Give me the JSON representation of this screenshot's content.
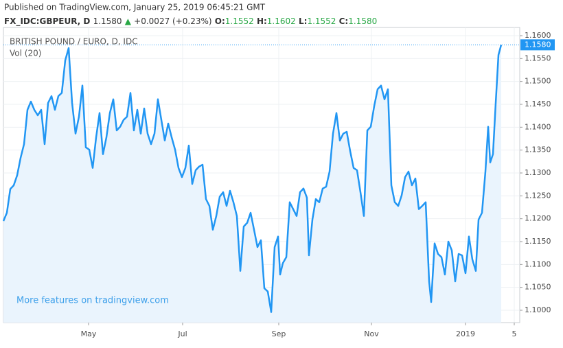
{
  "chart_data": {
    "type": "line",
    "header": {
      "published": "Published on TradingView.com, January 25, 2019 06:45:21 GMT",
      "symbol": "FX_IDC:GBPEUR, D",
      "last": "1.1580",
      "arrow": "▲",
      "change": "+0.0027 (+0.23%)",
      "o_label": "O:",
      "o": "1.1552",
      "h_label": "H:",
      "h": "1.1602",
      "l_label": "L:",
      "l": "1.1552",
      "c_label": "C:",
      "c": "1.1580"
    },
    "title": "BRITISH POUND / EURO, D, IDC",
    "indicator": "Vol (20)",
    "watermark": "More features on tradingview.com",
    "last_price_label": "1.1580",
    "series": [
      {
        "name": "GBPEUR",
        "color": "#2196f3",
        "x": [
          0,
          1,
          2,
          3,
          4,
          5,
          6,
          7,
          8,
          9,
          10,
          11,
          12,
          13,
          14,
          15,
          16,
          17,
          18,
          19,
          20,
          21,
          22,
          23,
          24,
          25,
          26,
          27,
          28,
          29,
          30,
          31,
          32,
          33,
          34,
          35,
          36,
          37,
          38,
          39,
          40,
          41,
          42,
          43,
          44,
          45,
          46,
          47,
          48,
          49,
          50,
          51,
          52,
          53,
          54,
          55,
          56,
          57,
          58,
          59,
          60,
          61,
          62,
          63,
          64,
          65,
          66,
          67,
          68,
          69,
          70,
          71,
          72,
          73,
          74,
          75,
          76,
          77,
          78,
          79,
          80,
          80.6,
          81.4,
          82.4,
          83.4,
          84.4,
          85.4,
          86.4,
          87.4,
          88.4,
          89,
          90,
          91,
          92,
          93,
          94,
          95,
          96,
          97,
          98,
          99,
          100,
          101,
          102,
          103,
          104,
          105,
          106,
          107,
          108,
          109,
          110,
          111,
          112,
          113,
          114,
          115,
          116,
          117,
          118,
          119,
          120,
          121,
          122,
          123,
          124,
          124.6,
          125.6,
          126.6,
          127.6,
          128.6,
          129.6,
          130.6,
          131.6,
          132.6,
          133.6,
          134.6,
          135.6,
          136.6,
          137.6,
          138.4,
          139.4,
          140.4,
          141.2,
          141.8,
          142.6,
          143.4,
          144.2,
          145
        ],
        "values": [
          1.1195,
          1.1213,
          1.1265,
          1.1273,
          1.1295,
          1.1333,
          1.1363,
          1.1438,
          1.1456,
          1.1438,
          1.1426,
          1.1438,
          1.1363,
          1.1453,
          1.1468,
          1.1438,
          1.1468,
          1.1475,
          1.1546,
          1.1573,
          1.1453,
          1.1386,
          1.1423,
          1.1491,
          1.1356,
          1.1351,
          1.1311,
          1.1378,
          1.1431,
          1.1341,
          1.1378,
          1.1431,
          1.1461,
          1.1393,
          1.1401,
          1.1416,
          1.1423,
          1.1475,
          1.1393,
          1.1438,
          1.1386,
          1.1441,
          1.1386,
          1.1363,
          1.1386,
          1.1461,
          1.1416,
          1.1371,
          1.1408,
          1.1378,
          1.1351,
          1.1311,
          1.1291,
          1.1311,
          1.136,
          1.1276,
          1.1306,
          1.1314,
          1.1318,
          1.1243,
          1.1228,
          1.1176,
          1.1206,
          1.1248,
          1.1258,
          1.1228,
          1.1261,
          1.1236,
          1.1206,
          1.1086,
          1.1183,
          1.1191,
          1.1213,
          1.1176,
          1.1138,
          1.1153,
          1.1048,
          1.1041,
          1.0996,
          1.1138,
          1.1161,
          1.1078,
          1.1103,
          1.1116,
          1.1236,
          1.1221,
          1.1206,
          1.1258,
          1.1266,
          1.1246,
          1.112,
          1.1198,
          1.1243,
          1.1236,
          1.1266,
          1.127,
          1.1303,
          1.1386,
          1.1431,
          1.1371,
          1.1386,
          1.139,
          1.1348,
          1.1311,
          1.1306,
          1.1258,
          1.1206,
          1.1393,
          1.1401,
          1.1446,
          1.1483,
          1.1491,
          1.1461,
          1.1483,
          1.1273,
          1.1236,
          1.1228,
          1.1251,
          1.1291,
          1.1303,
          1.1273,
          1.1288,
          1.1221,
          1.1228,
          1.1236,
          1.1063,
          1.1018,
          1.1146,
          1.1123,
          1.1116,
          1.1078,
          1.115,
          1.1131,
          1.1063,
          1.1123,
          1.112,
          1.1081,
          1.1161,
          1.1111,
          1.1086,
          1.1198,
          1.1213,
          1.1303,
          1.1401,
          1.1323,
          1.1341,
          1.1453,
          1.1558,
          1.158
        ]
      }
    ],
    "xlim": [
      0,
      150.4
    ],
    "xticks": [
      {
        "value": 24.8,
        "label": "May"
      },
      {
        "value": 52.2,
        "label": "Jul"
      },
      {
        "value": 80.2,
        "label": "Sep"
      },
      {
        "value": 107.2,
        "label": "Nov"
      },
      {
        "value": 134.6,
        "label": "2019"
      },
      {
        "value": 148.8,
        "label": "5"
      }
    ],
    "ylim": [
      1.0973,
      1.1618
    ],
    "yticks": [
      {
        "value": 1.1,
        "label": "1.1000"
      },
      {
        "value": 1.105,
        "label": "1.1050"
      },
      {
        "value": 1.11,
        "label": "1.1100"
      },
      {
        "value": 1.115,
        "label": "1.1150"
      },
      {
        "value": 1.12,
        "label": "1.1200"
      },
      {
        "value": 1.125,
        "label": "1.1250"
      },
      {
        "value": 1.13,
        "label": "1.1300"
      },
      {
        "value": 1.135,
        "label": "1.1350"
      },
      {
        "value": 1.14,
        "label": "1.1400"
      },
      {
        "value": 1.145,
        "label": "1.1450"
      },
      {
        "value": 1.15,
        "label": "1.1500"
      },
      {
        "value": 1.155,
        "label": "1.1550"
      },
      {
        "value": 1.16,
        "label": "1.1600"
      }
    ],
    "grid": true,
    "area_color": "#eaf4fd"
  }
}
